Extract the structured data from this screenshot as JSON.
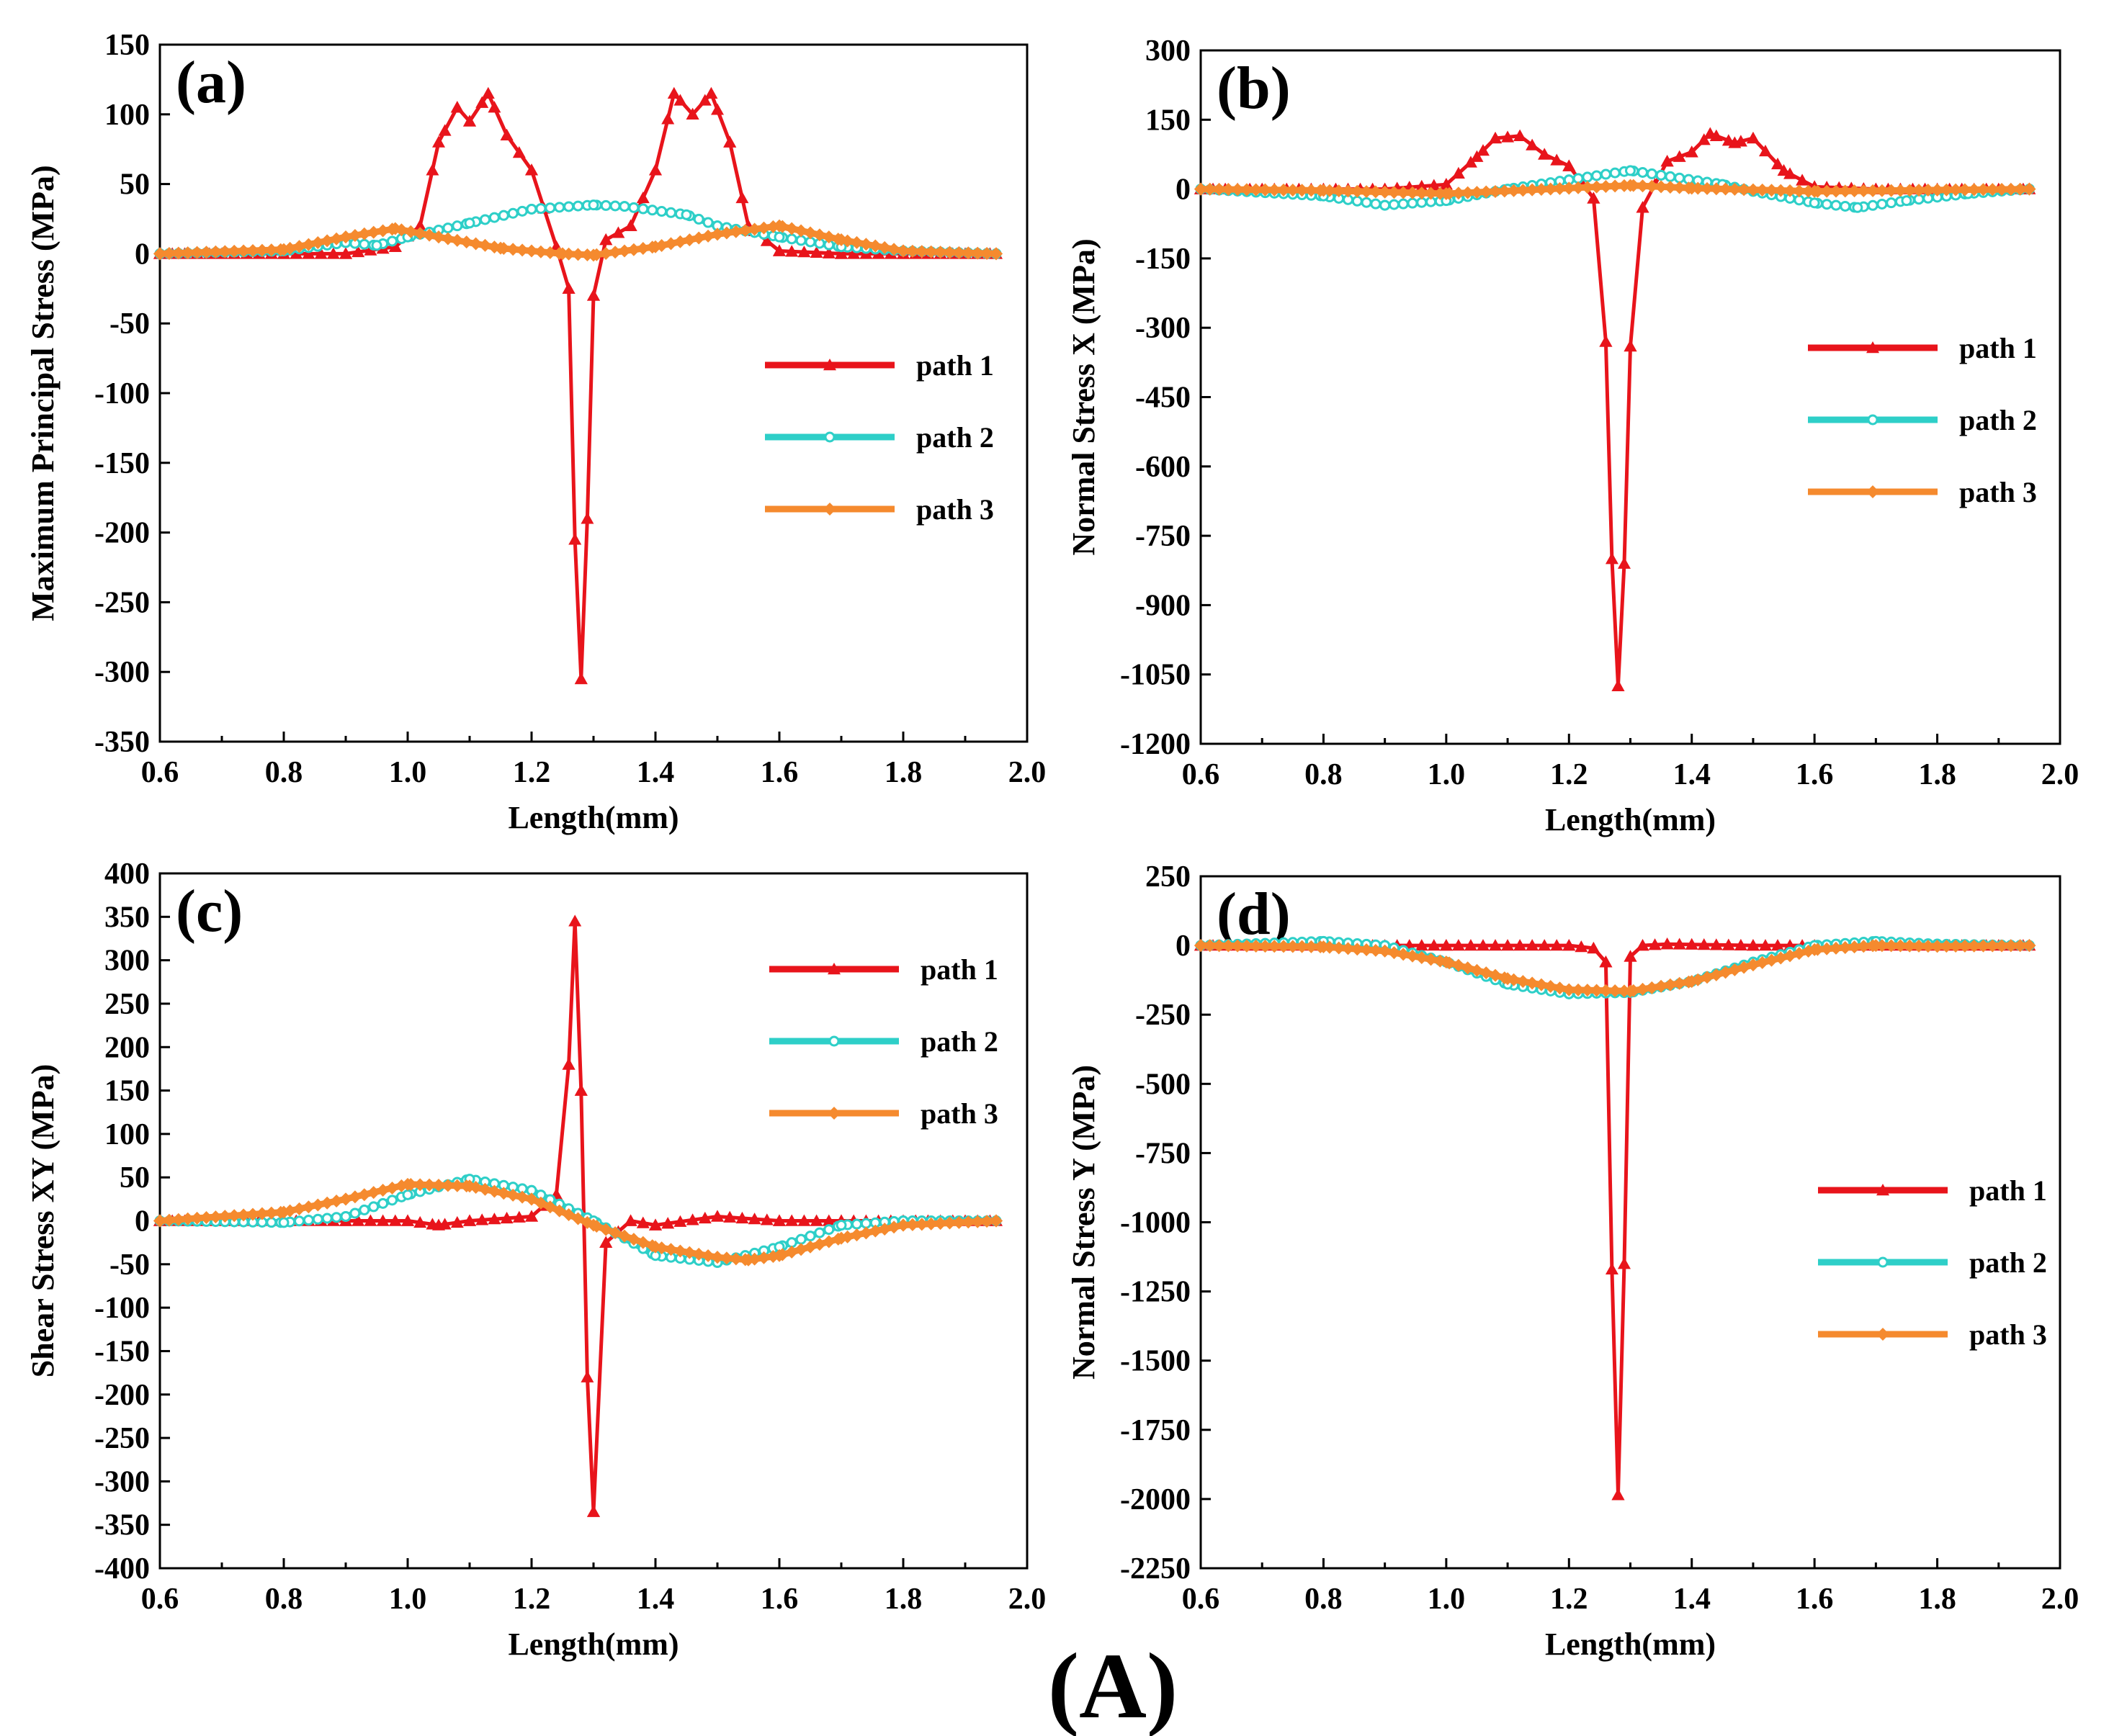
{
  "figure_label": "(A)",
  "colors": {
    "path1": "#e8141b",
    "path2": "#2ecfc8",
    "path3": "#f58a2e"
  },
  "chart_data": [
    {
      "type": "line",
      "panel": "(a)",
      "xlabel": "Length(mm)",
      "ylabel": "Maximum Principal Stress (MPa)",
      "xlim": [
        0.6,
        2.0
      ],
      "ylim": [
        -350,
        150
      ],
      "xticks": [
        "0.6",
        "0.8",
        "1.0",
        "1.2",
        "1.4",
        "1.6",
        "1.8",
        "2.0"
      ],
      "yticks": [
        "150",
        "100",
        "50",
        "0",
        "-50",
        "-100",
        "-150",
        "-200",
        "-250",
        "-300",
        "-350"
      ],
      "legend_position": "middle-right",
      "series": [
        {
          "name": "path 1",
          "x": [
            0.6,
            0.8,
            0.9,
            0.98,
            1.02,
            1.05,
            1.08,
            1.1,
            1.13,
            1.16,
            1.2,
            1.24,
            1.26,
            1.27,
            1.28,
            1.29,
            1.3,
            1.32,
            1.36,
            1.4,
            1.43,
            1.46,
            1.49,
            1.52,
            1.55,
            1.6,
            1.7,
            1.8,
            1.95
          ],
          "y": [
            0,
            0,
            0,
            5,
            20,
            80,
            105,
            95,
            115,
            85,
            60,
            5,
            -25,
            -205,
            -305,
            -190,
            -30,
            10,
            20,
            60,
            115,
            100,
            115,
            80,
            20,
            2,
            0,
            0,
            0
          ]
        },
        {
          "name": "path 2",
          "x": [
            0.6,
            0.8,
            0.9,
            0.95,
            1.0,
            1.1,
            1.2,
            1.3,
            1.35,
            1.45,
            1.5,
            1.6,
            1.7,
            1.8,
            1.95
          ],
          "y": [
            0,
            2,
            8,
            6,
            12,
            22,
            32,
            35,
            34,
            28,
            20,
            12,
            5,
            2,
            0
          ]
        },
        {
          "name": "path 3",
          "x": [
            0.6,
            0.8,
            0.9,
            0.98,
            1.05,
            1.15,
            1.25,
            1.3,
            1.4,
            1.5,
            1.6,
            1.7,
            1.8,
            1.95
          ],
          "y": [
            0,
            3,
            12,
            18,
            12,
            4,
            0,
            -1,
            5,
            14,
            20,
            10,
            2,
            0
          ]
        }
      ]
    },
    {
      "type": "line",
      "panel": "(b)",
      "xlabel": "Length(mm)",
      "ylabel": "Normal Stress X (MPa)",
      "xlim": [
        0.6,
        2.0
      ],
      "ylim": [
        -1200,
        300
      ],
      "xticks": [
        "0.6",
        "0.8",
        "1.0",
        "1.2",
        "1.4",
        "1.6",
        "1.8",
        "2.0"
      ],
      "yticks": [
        "300",
        "150",
        "0",
        "-150",
        "-300",
        "-450",
        "-600",
        "-750",
        "-900",
        "-1050",
        "-1200"
      ],
      "legend_position": "middle-right",
      "series": [
        {
          "name": "path 1",
          "x": [
            0.6,
            0.9,
            1.0,
            1.05,
            1.08,
            1.12,
            1.16,
            1.2,
            1.24,
            1.26,
            1.27,
            1.28,
            1.29,
            1.3,
            1.32,
            1.36,
            1.4,
            1.43,
            1.47,
            1.5,
            1.55,
            1.6,
            1.7,
            1.95
          ],
          "y": [
            0,
            0,
            10,
            70,
            110,
            115,
            75,
            50,
            -20,
            -330,
            -800,
            -1075,
            -810,
            -340,
            -40,
            60,
            80,
            120,
            100,
            110,
            40,
            5,
            0,
            0
          ]
        },
        {
          "name": "path 2",
          "x": [
            0.6,
            0.8,
            0.9,
            1.0,
            1.1,
            1.2,
            1.3,
            1.35,
            1.45,
            1.5,
            1.6,
            1.67,
            1.75,
            1.85,
            1.95
          ],
          "y": [
            0,
            -15,
            -35,
            -25,
            0,
            20,
            40,
            30,
            10,
            -5,
            -30,
            -40,
            -25,
            -10,
            0
          ]
        },
        {
          "name": "path 3",
          "x": [
            0.6,
            0.8,
            1.0,
            1.2,
            1.3,
            1.4,
            1.6,
            1.8,
            1.95
          ],
          "y": [
            0,
            -3,
            -10,
            2,
            8,
            2,
            -5,
            -2,
            0
          ]
        }
      ]
    },
    {
      "type": "line",
      "panel": "(c)",
      "xlabel": "Length(mm)",
      "ylabel": "Shear Stress XY (MPa)",
      "xlim": [
        0.6,
        2.0
      ],
      "ylim": [
        -400,
        400
      ],
      "xticks": [
        "0.6",
        "0.8",
        "1.0",
        "1.2",
        "1.4",
        "1.6",
        "1.8",
        "2.0"
      ],
      "yticks": [
        "400",
        "350",
        "300",
        "250",
        "200",
        "150",
        "100",
        "50",
        "0",
        "-50",
        "-100",
        "-150",
        "-200",
        "-250",
        "-300",
        "-350",
        "-400"
      ],
      "legend_position": "upper-right",
      "series": [
        {
          "name": "path 1",
          "x": [
            0.6,
            0.9,
            1.0,
            1.05,
            1.1,
            1.2,
            1.24,
            1.26,
            1.27,
            1.28,
            1.29,
            1.3,
            1.32,
            1.36,
            1.4,
            1.5,
            1.6,
            1.7,
            1.95
          ],
          "y": [
            0,
            0,
            0,
            -5,
            0,
            5,
            30,
            180,
            345,
            150,
            -180,
            -335,
            -25,
            0,
            -5,
            5,
            0,
            0,
            0
          ]
        },
        {
          "name": "path 2",
          "x": [
            0.6,
            0.8,
            0.9,
            1.0,
            1.1,
            1.2,
            1.3,
            1.4,
            1.5,
            1.6,
            1.7,
            1.8,
            1.95
          ],
          "y": [
            0,
            -2,
            5,
            30,
            48,
            35,
            0,
            -40,
            -48,
            -30,
            -5,
            0,
            0
          ]
        },
        {
          "name": "path 3",
          "x": [
            0.6,
            0.8,
            0.9,
            1.0,
            1.1,
            1.2,
            1.3,
            1.4,
            1.5,
            1.55,
            1.6,
            1.7,
            1.8,
            1.95
          ],
          "y": [
            0,
            10,
            25,
            42,
            40,
            25,
            -5,
            -30,
            -42,
            -45,
            -40,
            -20,
            -5,
            0
          ]
        }
      ]
    },
    {
      "type": "line",
      "panel": "(d)",
      "xlabel": "Length(mm)",
      "ylabel": "Normal Stress Y (MPa)",
      "xlim": [
        0.6,
        2.0
      ],
      "ylim": [
        -2250,
        250
      ],
      "xticks": [
        "0.6",
        "0.8",
        "1.0",
        "1.2",
        "1.4",
        "1.6",
        "1.8",
        "2.0"
      ],
      "yticks": [
        "250",
        "0",
        "-250",
        "-500",
        "-750",
        "-1000",
        "-1250",
        "-1500",
        "-1750",
        "-2000",
        "-2250"
      ],
      "legend_position": "lower-right",
      "series": [
        {
          "name": "path 1",
          "x": [
            0.6,
            1.0,
            1.2,
            1.24,
            1.26,
            1.27,
            1.28,
            1.29,
            1.3,
            1.32,
            1.36,
            1.5,
            1.95
          ],
          "y": [
            0,
            0,
            0,
            -10,
            -60,
            -1170,
            -1985,
            -1150,
            -40,
            0,
            5,
            0,
            0
          ]
        },
        {
          "name": "path 2",
          "x": [
            0.6,
            0.8,
            0.9,
            1.0,
            1.1,
            1.2,
            1.3,
            1.4,
            1.5,
            1.6,
            1.7,
            1.8,
            1.95
          ],
          "y": [
            0,
            15,
            0,
            -60,
            -140,
            -175,
            -170,
            -130,
            -60,
            0,
            15,
            5,
            0
          ]
        },
        {
          "name": "path 3",
          "x": [
            0.6,
            0.8,
            0.9,
            1.0,
            1.1,
            1.2,
            1.3,
            1.4,
            1.5,
            1.6,
            1.7,
            1.8,
            1.95
          ],
          "y": [
            0,
            -5,
            -20,
            -60,
            -120,
            -160,
            -165,
            -130,
            -70,
            -15,
            0,
            -3,
            0
          ]
        }
      ]
    }
  ]
}
